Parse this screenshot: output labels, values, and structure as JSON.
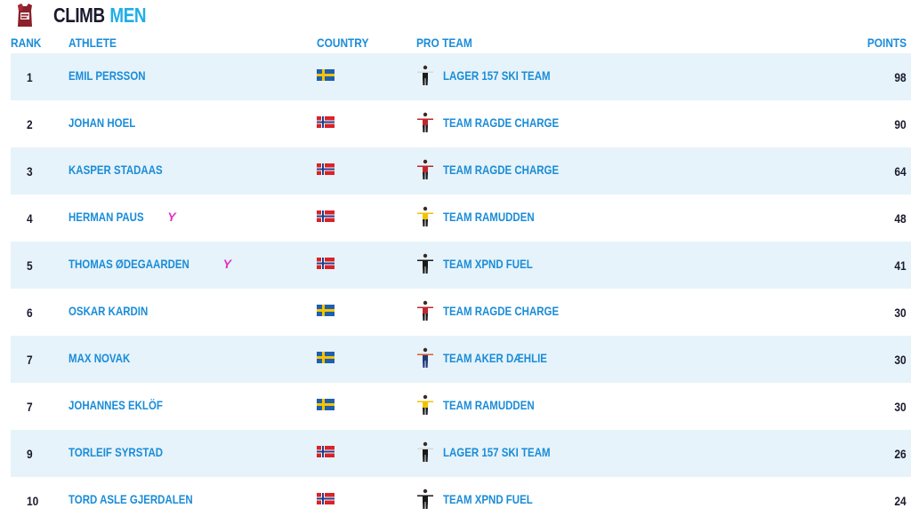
{
  "header": {
    "title_word1": "CLIMB",
    "title_word2": "MEN"
  },
  "columns": {
    "rank": "RANK",
    "athlete": "ATHLETE",
    "country": "COUNTRY",
    "pro_team": "PRO TEAM",
    "points": "POINTS"
  },
  "colors": {
    "accent": "#1a8cd8",
    "title_accent": "#1eaee8",
    "row_alt": "#e6f3fa",
    "young_marker": "#e02fc8"
  },
  "rows": [
    {
      "rank": "1",
      "athlete": "EMIL PERSSON",
      "young": false,
      "country": "SWE",
      "team": "LAGER 157 SKI TEAM",
      "team_kit": "lager157",
      "points": "98"
    },
    {
      "rank": "2",
      "athlete": "JOHAN HOEL",
      "young": false,
      "country": "NOR",
      "team": "TEAM RAGDE CHARGE",
      "team_kit": "ragde",
      "points": "90"
    },
    {
      "rank": "3",
      "athlete": "KASPER STADAAS",
      "young": false,
      "country": "NOR",
      "team": "TEAM RAGDE CHARGE",
      "team_kit": "ragde",
      "points": "64"
    },
    {
      "rank": "4",
      "athlete": "HERMAN PAUS",
      "young": true,
      "young_label": "Y",
      "country": "NOR",
      "team": "TEAM RAMUDDEN",
      "team_kit": "ramudden",
      "points": "48"
    },
    {
      "rank": "5",
      "athlete": "THOMAS ØDEGAARDEN",
      "young": true,
      "young_label": "Y",
      "country": "NOR",
      "team": "TEAM XPND FUEL",
      "team_kit": "xpnd",
      "points": "41"
    },
    {
      "rank": "6",
      "athlete": "OSKAR KARDIN",
      "young": false,
      "country": "SWE",
      "team": "TEAM RAGDE CHARGE",
      "team_kit": "ragde",
      "points": "30"
    },
    {
      "rank": "7",
      "athlete": "MAX NOVAK",
      "young": false,
      "country": "SWE",
      "team": "TEAM AKER DÆHLIE",
      "team_kit": "aker",
      "points": "30"
    },
    {
      "rank": "7",
      "athlete": "JOHANNES EKLÖF",
      "young": false,
      "country": "SWE",
      "team": "TEAM RAMUDDEN",
      "team_kit": "ramudden",
      "points": "30"
    },
    {
      "rank": "9",
      "athlete": "TORLEIF SYRSTAD",
      "young": false,
      "country": "NOR",
      "team": "LAGER 157 SKI TEAM",
      "team_kit": "lager157",
      "points": "26"
    },
    {
      "rank": "10",
      "athlete": "TORD ASLE GJERDALEN",
      "young": false,
      "country": "NOR",
      "team": "TEAM XPND FUEL",
      "team_kit": "xpnd",
      "points": "24"
    }
  ]
}
